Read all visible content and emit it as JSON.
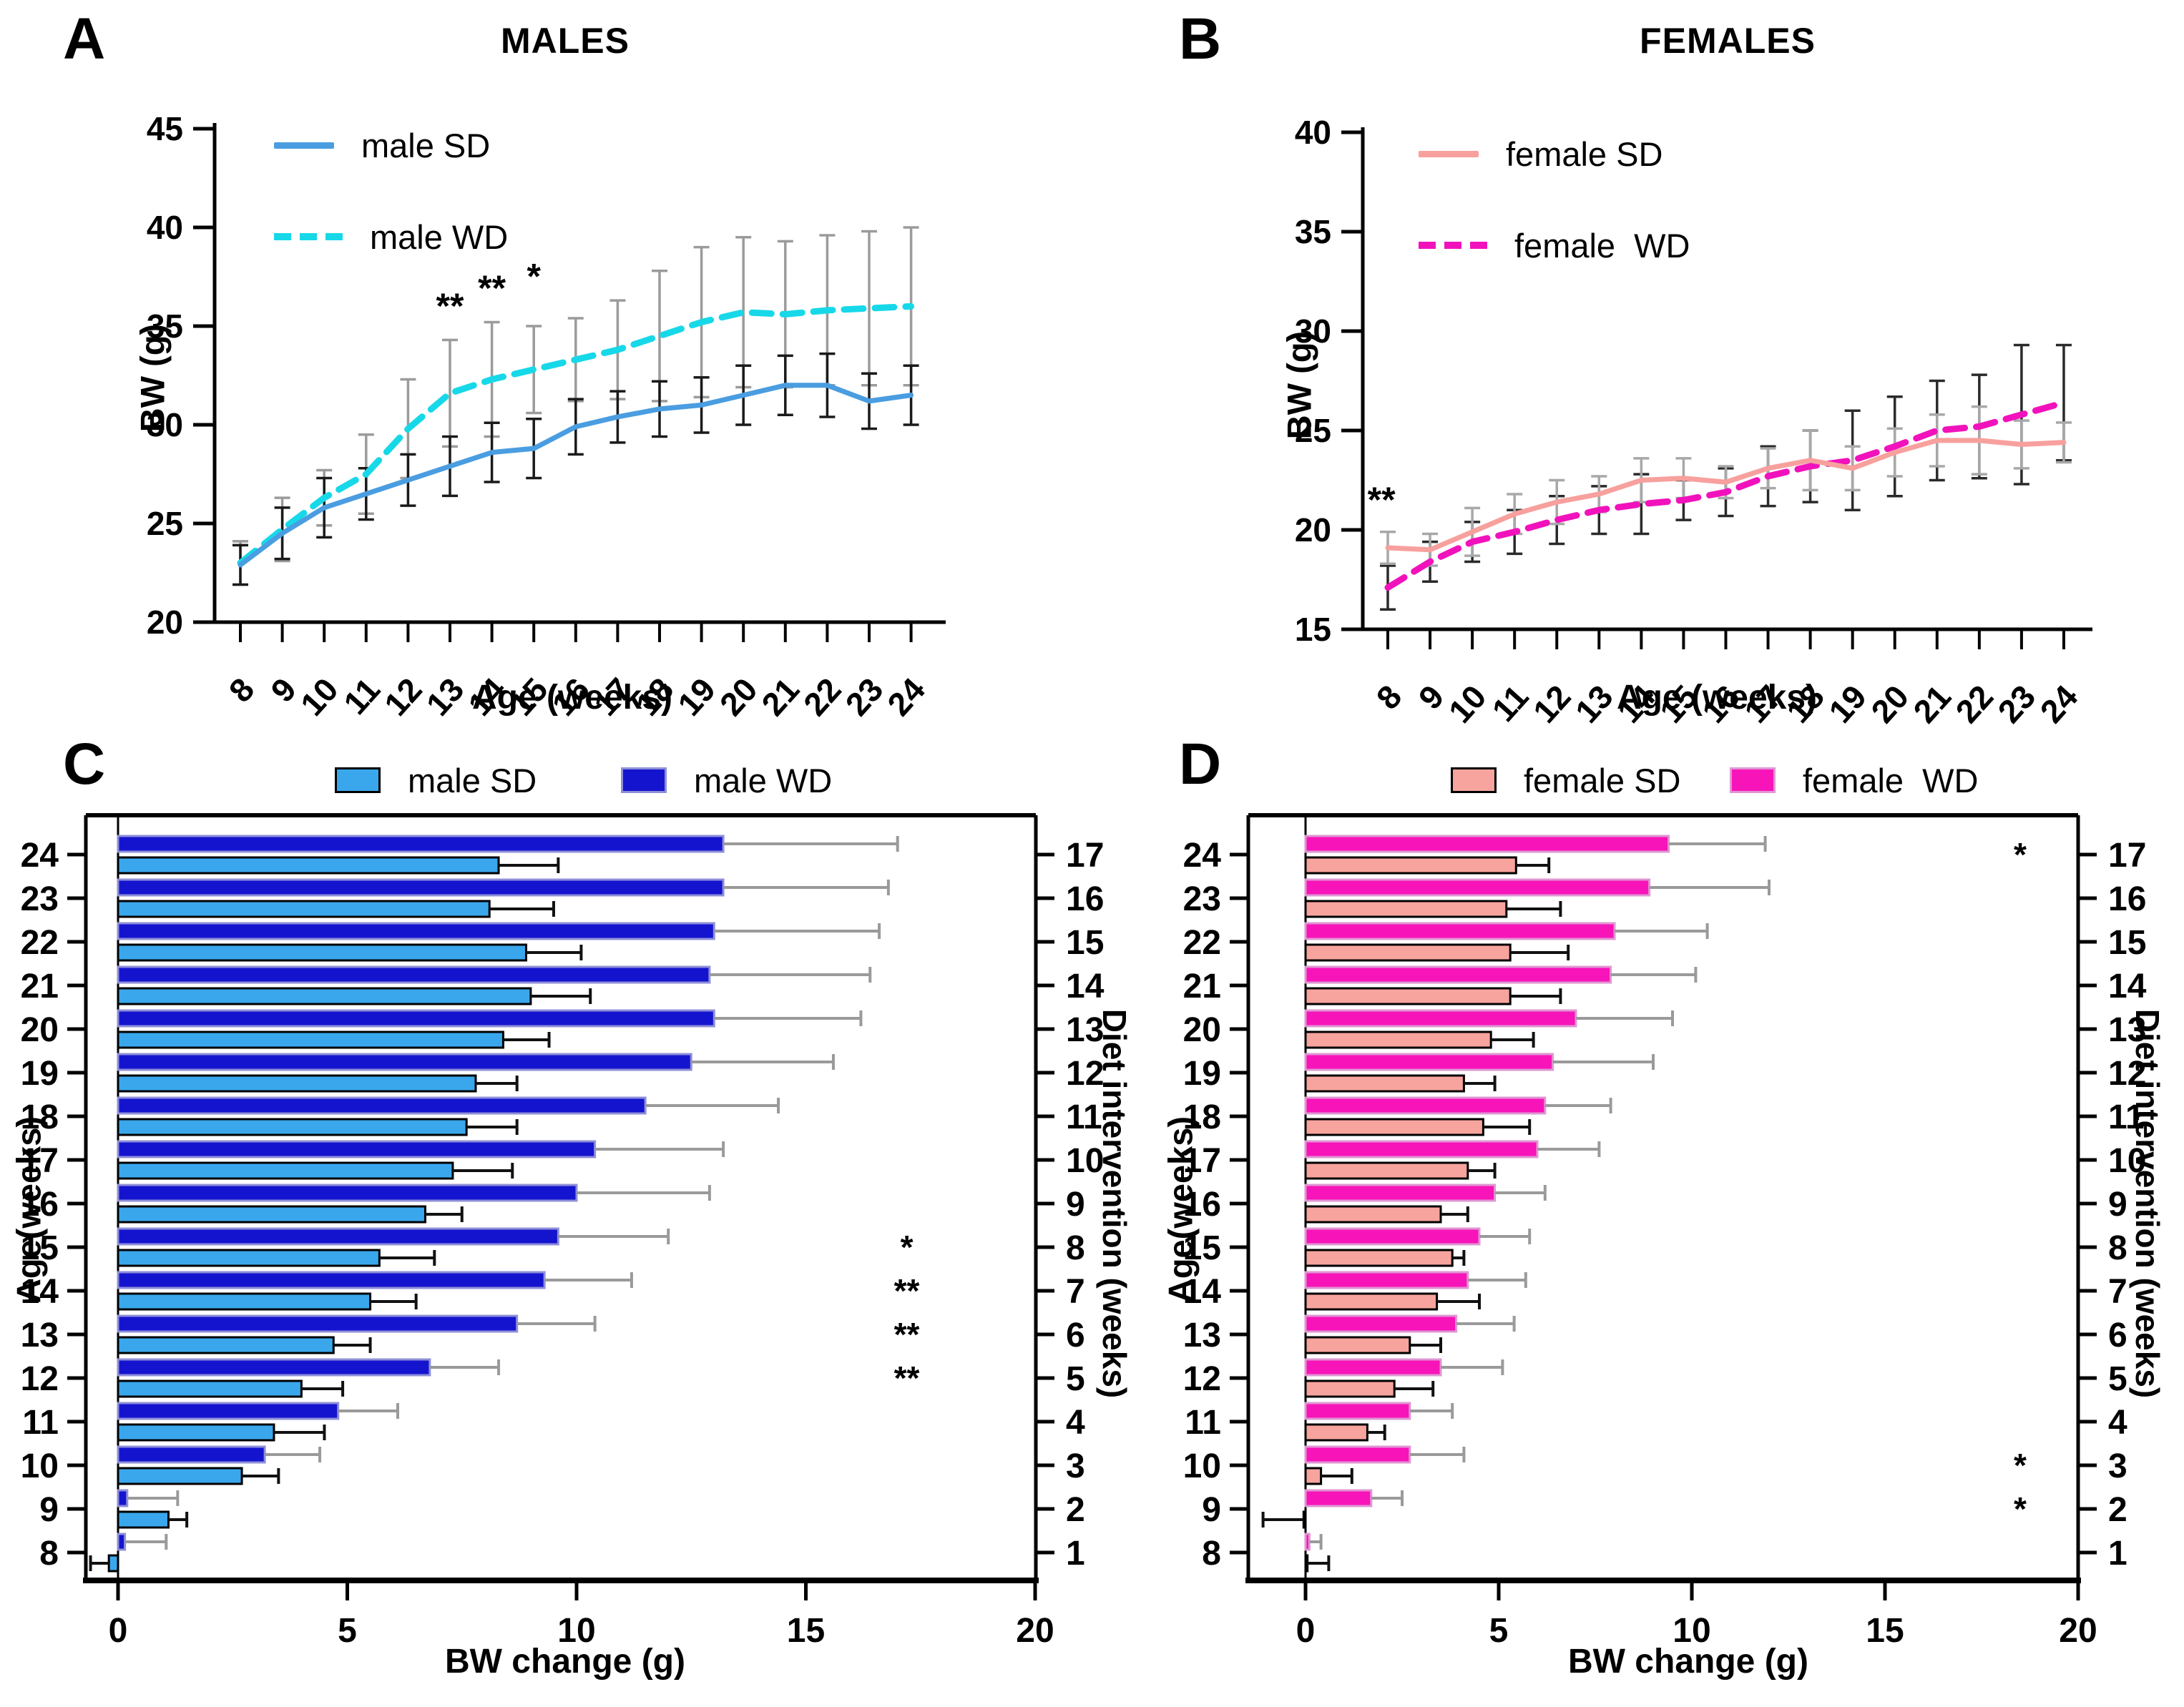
{
  "figure": {
    "background": "#ffffff",
    "panel_letters": [
      "A",
      "B",
      "C",
      "D"
    ]
  },
  "chart_data": [
    {
      "type": "line",
      "panel_letter": "A",
      "title": "MALES",
      "xlabel": "Age (weeks)",
      "ylabel": "BW (g)",
      "x": [
        8,
        9,
        10,
        11,
        12,
        13,
        14,
        15,
        16,
        17,
        18,
        19,
        20,
        21,
        22,
        23,
        24
      ],
      "ylim": [
        20,
        45
      ],
      "yticks": [
        45,
        40,
        35,
        30,
        25,
        20
      ],
      "legend_position": "top-left-inside",
      "grid": false,
      "series": [
        {
          "name": "male SD",
          "color": "#4a9de0",
          "dash": false,
          "err_color": "#1a1a1a",
          "values": [
            22.9,
            24.5,
            25.8,
            26.5,
            27.2,
            27.9,
            28.6,
            28.8,
            29.9,
            30.4,
            30.8,
            31.0,
            31.5,
            32.0,
            32.0,
            31.2,
            31.5
          ],
          "errors": [
            1.0,
            1.3,
            1.5,
            1.3,
            1.3,
            1.5,
            1.5,
            1.5,
            1.4,
            1.3,
            1.4,
            1.4,
            1.5,
            1.5,
            1.6,
            1.4,
            1.5
          ]
        },
        {
          "name": "male WD",
          "color": "#17d8e8",
          "dash": true,
          "err_color": "#9b9b9b",
          "values": [
            23.0,
            24.7,
            26.3,
            27.5,
            29.8,
            31.6,
            32.3,
            32.8,
            33.3,
            33.8,
            34.5,
            35.2,
            35.7,
            35.6,
            35.8,
            35.9,
            36.0
          ],
          "errors": [
            1.1,
            1.6,
            1.4,
            2.0,
            2.5,
            2.7,
            2.9,
            2.2,
            2.1,
            2.5,
            3.3,
            3.8,
            3.8,
            3.7,
            3.8,
            3.9,
            4.0
          ]
        }
      ],
      "significance": [
        {
          "x": 13,
          "y": 35.4,
          "text": "**"
        },
        {
          "x": 14,
          "y": 36.3,
          "text": "**"
        },
        {
          "x": 15,
          "y": 36.9,
          "text": "*"
        }
      ]
    },
    {
      "type": "line",
      "panel_letter": "B",
      "title": "FEMALES",
      "xlabel": "Age (weeks)",
      "ylabel": "BW (g)",
      "x": [
        8,
        9,
        10,
        11,
        12,
        13,
        14,
        15,
        16,
        17,
        18,
        19,
        20,
        21,
        22,
        23,
        24
      ],
      "ylim": [
        15,
        40
      ],
      "yticks": [
        40,
        35,
        30,
        25,
        20,
        15
      ],
      "legend_position": "top-left-inside",
      "grid": false,
      "series": [
        {
          "name": "female SD",
          "color": "#f7a09d",
          "dash": false,
          "err_color": "#a8a8a8",
          "values": [
            19.1,
            19.0,
            19.9,
            20.8,
            21.4,
            21.8,
            22.5,
            22.6,
            22.4,
            23.1,
            23.5,
            23.1,
            23.9,
            24.5,
            24.5,
            24.3,
            24.4
          ],
          "errors": [
            0.8,
            0.8,
            1.2,
            1.0,
            1.1,
            0.9,
            1.1,
            1.0,
            0.8,
            1.0,
            1.5,
            1.1,
            1.2,
            1.3,
            1.7,
            1.2,
            1.0
          ]
        },
        {
          "name": "female  WD",
          "color": "#f112bc",
          "dash": true,
          "err_color": "#2a2a2a",
          "values": [
            17.1,
            18.4,
            19.4,
            19.9,
            20.5,
            21.0,
            21.3,
            21.5,
            21.9,
            22.7,
            23.2,
            23.5,
            24.2,
            25.0,
            25.2,
            25.8,
            26.4
          ],
          "errors": [
            1.1,
            1.0,
            1.0,
            1.1,
            1.2,
            1.2,
            1.5,
            1.0,
            1.2,
            1.5,
            1.8,
            2.5,
            2.5,
            2.5,
            2.6,
            3.5,
            2.9
          ]
        }
      ],
      "significance": [
        {
          "x": 7.85,
          "y": 20.9,
          "text": "**"
        }
      ]
    },
    {
      "type": "bar",
      "panel_letter": "C",
      "orientation": "horizontal",
      "xlabel": "BW change (g)",
      "ylabel_left": "Age(weeks)",
      "ylabel_right": "Diet intervention (weeks)",
      "categories": [
        8,
        9,
        10,
        11,
        12,
        13,
        14,
        15,
        16,
        17,
        18,
        19,
        20,
        21,
        22,
        23,
        24
      ],
      "right_axis": [
        1,
        2,
        3,
        4,
        5,
        6,
        7,
        8,
        9,
        10,
        11,
        12,
        13,
        14,
        15,
        16,
        17
      ],
      "xticks": [
        0,
        5,
        10,
        15,
        20
      ],
      "xlim": [
        -1.8,
        20
      ],
      "series": [
        {
          "name": "male SD",
          "color": "#3aa7ec",
          "edge": "#000000",
          "err_color": "#111111",
          "values": [
            -0.2,
            1.1,
            2.7,
            3.4,
            4.0,
            4.7,
            5.5,
            5.7,
            6.7,
            7.3,
            7.6,
            7.8,
            8.4,
            9.0,
            8.9,
            8.1,
            8.3
          ],
          "errors": [
            -0.4,
            0.4,
            0.8,
            1.1,
            0.9,
            0.8,
            1.0,
            1.2,
            0.8,
            1.3,
            1.1,
            0.9,
            1.0,
            1.3,
            1.2,
            1.4,
            1.3
          ]
        },
        {
          "name": "male WD",
          "color": "#1414cf",
          "edge": "#8f8fd8",
          "err_color": "#9a9a9a",
          "values": [
            0.15,
            0.2,
            3.2,
            4.8,
            6.8,
            8.7,
            9.3,
            9.6,
            10.0,
            10.4,
            11.5,
            12.5,
            13.0,
            12.9,
            13.0,
            13.2,
            13.2
          ],
          "errors": [
            0.9,
            1.1,
            1.2,
            1.3,
            1.5,
            1.7,
            1.9,
            2.4,
            2.9,
            2.8,
            2.9,
            3.1,
            3.2,
            3.5,
            3.6,
            3.6,
            3.8
          ]
        }
      ],
      "sig_x": 17.2,
      "significance": [
        {
          "age": 15,
          "text": "*"
        },
        {
          "age": 14,
          "text": "**"
        },
        {
          "age": 13,
          "text": "**"
        },
        {
          "age": 12,
          "text": "**"
        }
      ]
    },
    {
      "type": "bar",
      "panel_letter": "D",
      "orientation": "horizontal",
      "xlabel": "BW change (g)",
      "ylabel_left": "Age(weeks)",
      "ylabel_right": "Diet intervention (weeks)",
      "categories": [
        8,
        9,
        10,
        11,
        12,
        13,
        14,
        15,
        16,
        17,
        18,
        19,
        20,
        21,
        22,
        23,
        24
      ],
      "right_axis": [
        1,
        2,
        3,
        4,
        5,
        6,
        7,
        8,
        9,
        10,
        11,
        12,
        13,
        14,
        15,
        16,
        17
      ],
      "xticks": [
        0,
        5,
        10,
        15,
        20
      ],
      "xlim": [
        -2.1,
        20
      ],
      "series": [
        {
          "name": "female SD",
          "color": "#f7a49e",
          "edge": "#000000",
          "err_color": "#111111",
          "values": [
            0.05,
            -0.05,
            0.4,
            1.6,
            2.3,
            2.7,
            3.4,
            3.8,
            3.5,
            4.2,
            4.6,
            4.1,
            4.8,
            5.3,
            5.3,
            5.2,
            5.45
          ],
          "errors": [
            0.55,
            -1.05,
            0.8,
            0.45,
            1.0,
            0.8,
            1.1,
            0.3,
            0.7,
            0.7,
            1.2,
            0.8,
            1.1,
            1.3,
            1.5,
            1.4,
            0.85
          ]
        },
        {
          "name": "female  WD",
          "color": "#f714b9",
          "edge": "#df96d2",
          "err_color": "#9a9a9a",
          "values": [
            0.1,
            1.7,
            2.7,
            2.7,
            3.5,
            3.9,
            4.2,
            4.5,
            4.9,
            6.0,
            6.2,
            6.4,
            7.0,
            7.9,
            8.0,
            8.9,
            9.4
          ],
          "errors": [
            0.3,
            0.8,
            1.4,
            1.1,
            1.6,
            1.5,
            1.5,
            1.3,
            1.3,
            1.6,
            1.7,
            2.6,
            2.5,
            2.2,
            2.4,
            3.1,
            2.5
          ]
        }
      ],
      "sig_x": 18.5,
      "significance": [
        {
          "age": 24,
          "text": "*"
        },
        {
          "age": 10,
          "text": "*"
        },
        {
          "age": 9,
          "text": "*"
        }
      ]
    }
  ]
}
